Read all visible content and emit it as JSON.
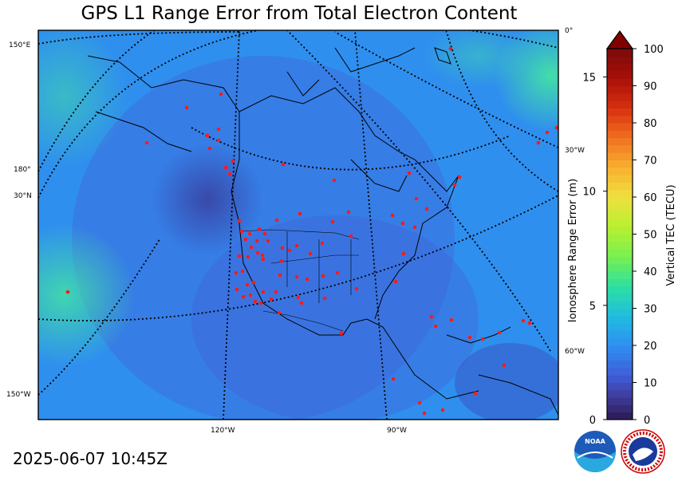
{
  "title": "GPS L1 Range Error from Total Electron Content",
  "timestamp": "2025-06-07 10:45Z",
  "graticule_labels": {
    "left": [
      "150°E",
      "180°",
      "30°N",
      "150°W"
    ],
    "right": [
      "0°",
      "30°W",
      "60°W"
    ],
    "bottom": [
      "120°W",
      "90°W"
    ]
  },
  "colorbar": {
    "tec_label": "Vertical TEC (TECU)",
    "range_label": "Ionosphere Range Error (m)",
    "tec_ticks": [
      "0",
      "10",
      "20",
      "30",
      "40",
      "50",
      "60",
      "70",
      "80",
      "90",
      "100"
    ],
    "range_ticks": [
      "0",
      "5",
      "10",
      "15"
    ],
    "extend": "max"
  },
  "logos": {
    "noaa": "NOAA",
    "nws": "NATIONAL WEATHER SERVICE"
  },
  "colors": {
    "low_tec": "#3f3aa0",
    "mid_tec": "#2f7ff0",
    "high_tec": "#2fe08f",
    "station_dot": "#ff1a1a",
    "cap": "#800000"
  }
}
